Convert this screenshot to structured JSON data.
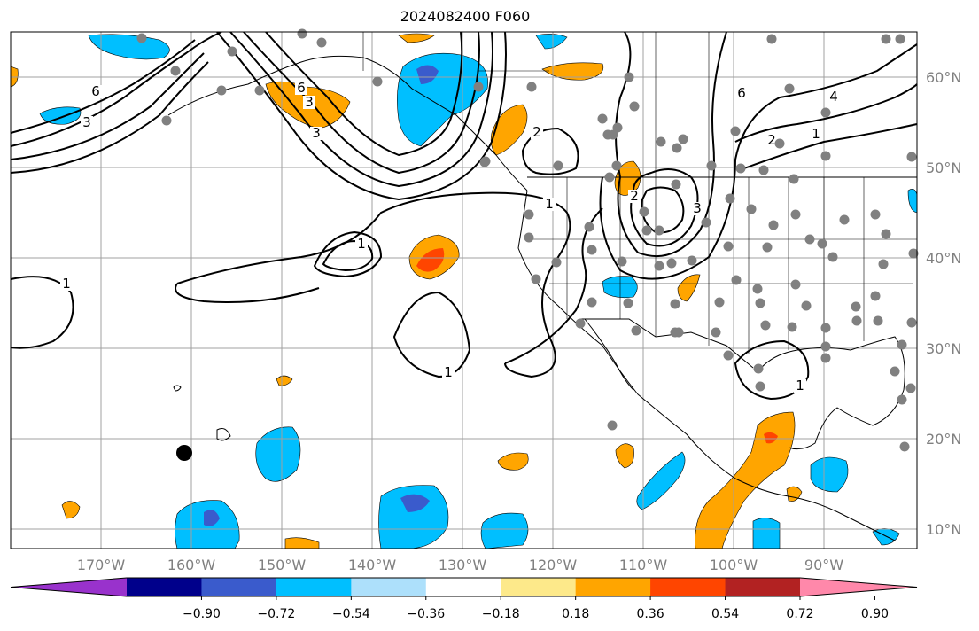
{
  "title": "2024082400 F060",
  "longitude_labels": [
    "170°W",
    "160°W",
    "150°W",
    "140°W",
    "130°W",
    "120°W",
    "110°W",
    "100°W",
    "90°W"
  ],
  "latitude_labels": [
    "60°N",
    "50°N",
    "40°N",
    "30°N",
    "20°N",
    "10°N"
  ],
  "colorbar": {
    "tick_labels": [
      "−0.90",
      "−0.72",
      "−0.54",
      "−0.36",
      "−0.18",
      "0.18",
      "0.36",
      "0.54",
      "0.72",
      "0.90"
    ],
    "colors": [
      "#9932cc",
      "#00008b",
      "#3a5bcc",
      "#00bfff",
      "#ade0fb",
      "#ffffff",
      "#fde98a",
      "#ffa500",
      "#ff4500",
      "#b22222",
      "#ff88aa"
    ]
  },
  "contour_labels": [
    "6",
    "3",
    "6",
    "3",
    "3",
    "2",
    "1",
    "6",
    "2",
    "3",
    "1",
    "4",
    "2",
    "1",
    "1",
    "1",
    "1"
  ],
  "station_dot_color": "#808080",
  "map_colors": {
    "positive_anomaly": "#ffa500",
    "strong_positive": "#ff4500",
    "negative_anomaly": "#00bfff",
    "strong_negative": "#3a5bcc",
    "contour": "#000000",
    "grid": "#a0a0a0"
  }
}
